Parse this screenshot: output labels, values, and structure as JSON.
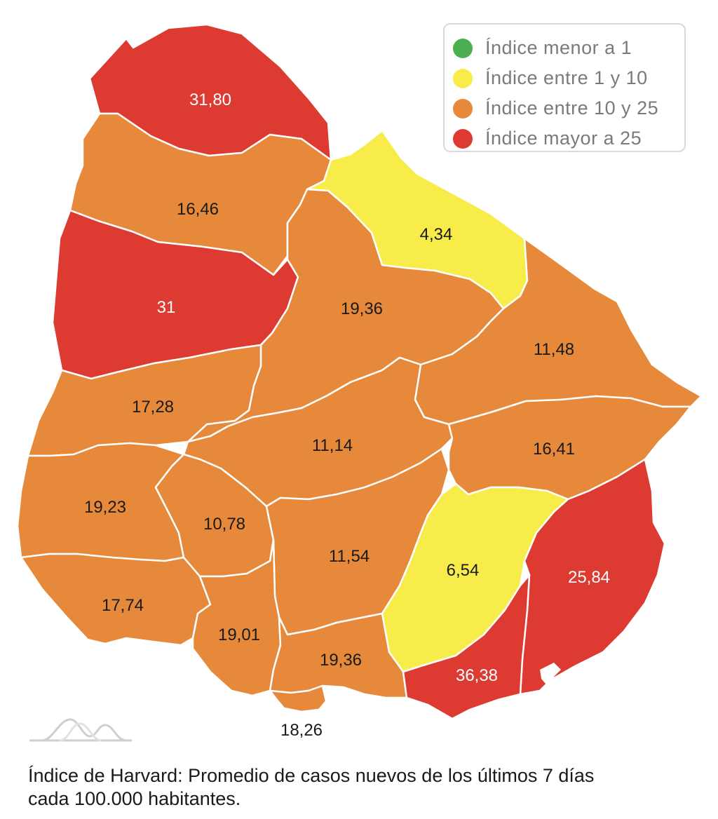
{
  "legend": {
    "items": [
      {
        "label": "Índice menor a 1",
        "color": "#4caf50"
      },
      {
        "label": "Índice entre 1 y 10",
        "color": "#f8ec4a"
      },
      {
        "label": "Índice entre 10 y 25",
        "color": "#e6893a"
      },
      {
        "label": "Índice mayor a 25",
        "color": "#dd3b31"
      }
    ]
  },
  "colors": {
    "yellow": "#f8ec4a",
    "orange": "#e6893a",
    "red": "#dd3b31",
    "border": "#ffffff",
    "label_dark": "#1a1a1a",
    "label_light": "#ffffff"
  },
  "departments": [
    {
      "value": "31,80",
      "category": "red"
    },
    {
      "value": "16,46",
      "category": "orange"
    },
    {
      "value": "31",
      "category": "red"
    },
    {
      "value": "4,34",
      "category": "yellow"
    },
    {
      "value": "19,36",
      "category": "orange"
    },
    {
      "value": "11,48",
      "category": "orange"
    },
    {
      "value": "17,28",
      "category": "orange"
    },
    {
      "value": "11,14",
      "category": "orange"
    },
    {
      "value": "16,41",
      "category": "orange"
    },
    {
      "value": "19,23",
      "category": "orange"
    },
    {
      "value": "10,78",
      "category": "orange"
    },
    {
      "value": "11,54",
      "category": "orange"
    },
    {
      "value": "6,54",
      "category": "yellow"
    },
    {
      "value": "25,84",
      "category": "red"
    },
    {
      "value": "17,74",
      "category": "orange"
    },
    {
      "value": "19,01",
      "category": "orange"
    },
    {
      "value": "19,36",
      "category": "orange"
    },
    {
      "value": "36,38",
      "category": "red"
    },
    {
      "value": "18,26",
      "category": "orange"
    }
  ],
  "caption": {
    "line1": "Índice de Harvard: Promedio de casos nuevos de los últimos 7 días",
    "line2": "cada 100.000 habitantes."
  },
  "icons": {
    "watermark": "mountain-logo-icon"
  }
}
